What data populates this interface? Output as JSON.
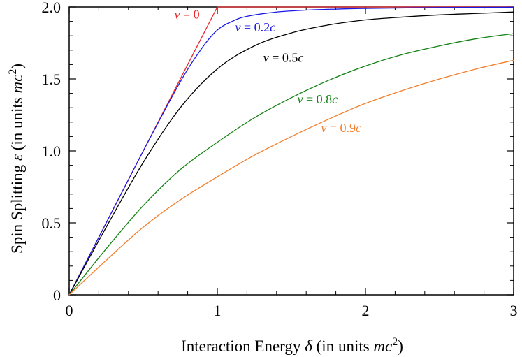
{
  "chart_data": {
    "type": "line",
    "title": "",
    "xlabel": {
      "text": "Interaction Energy",
      "symbol": "δ",
      "units_prefix": "(in units",
      "units_symbol": "mc",
      "units_power": "2",
      "units_suffix": ")"
    },
    "ylabel": {
      "text": "Spin Splitting",
      "symbol": "ε",
      "units_prefix": "(in units",
      "units_symbol": "mc",
      "units_power": "2",
      "units_suffix": ")"
    },
    "xlim": [
      0,
      3
    ],
    "ylim": [
      0,
      2
    ],
    "x_ticks": [
      0,
      1,
      2,
      3
    ],
    "x_tick_labels": [
      "0",
      "1",
      "2",
      "3"
    ],
    "y_ticks": [
      0,
      0.5,
      1.0,
      1.5,
      2.0
    ],
    "y_tick_labels": [
      "0",
      "0.5",
      "1.0",
      "1.5",
      "2.0"
    ],
    "x_minor_step": 0.2,
    "y_minor_step": 0.1,
    "grid": false,
    "series": [
      {
        "name": "v = 0",
        "label_var": "v",
        "label_eq": " = ",
        "label_num": "0",
        "label_unit": "",
        "color": "#e8262a",
        "x": [
          0,
          1,
          3
        ],
        "values": [
          0,
          2,
          2
        ]
      },
      {
        "name": "v = 0.2c",
        "label_var": "v",
        "label_eq": " = ",
        "label_num": "0.2",
        "label_unit": "c",
        "color": "#1a1ae6",
        "x": [
          0,
          0.25,
          0.5,
          0.75,
          0.9,
          1.0,
          1.1,
          1.2,
          1.4,
          1.6,
          1.8,
          2.0,
          2.5,
          3.0
        ],
        "values": [
          0,
          0.5,
          1.0,
          1.48,
          1.72,
          1.84,
          1.9,
          1.935,
          1.965,
          1.978,
          1.985,
          1.99,
          1.996,
          1.998
        ]
      },
      {
        "name": "v = 0.5c",
        "label_var": "v",
        "label_eq": " = ",
        "label_num": "0.5",
        "label_unit": "c",
        "color": "#000000",
        "x": [
          0,
          0.25,
          0.5,
          0.75,
          1.0,
          1.25,
          1.5,
          1.75,
          2.0,
          2.25,
          2.5,
          2.75,
          3.0
        ],
        "values": [
          0,
          0.47,
          0.92,
          1.3,
          1.57,
          1.73,
          1.82,
          1.875,
          1.91,
          1.93,
          1.945,
          1.955,
          1.965
        ]
      },
      {
        "name": "v = 0.8c",
        "label_var": "v",
        "label_eq": " = ",
        "label_num": "0.8",
        "label_unit": "c",
        "color": "#148214",
        "x": [
          0,
          0.25,
          0.5,
          0.75,
          1.0,
          1.25,
          1.5,
          1.75,
          2.0,
          2.25,
          2.5,
          2.75,
          3.0
        ],
        "values": [
          0,
          0.32,
          0.62,
          0.87,
          1.06,
          1.23,
          1.37,
          1.49,
          1.59,
          1.67,
          1.73,
          1.78,
          1.815
        ]
      },
      {
        "name": "v = 0.9c",
        "label_var": "v",
        "label_eq": " = ",
        "label_num": "0.9",
        "label_unit": "c",
        "color": "#f27f2d",
        "x": [
          0,
          0.25,
          0.5,
          0.75,
          1.0,
          1.25,
          1.5,
          1.75,
          2.0,
          2.25,
          2.5,
          2.75,
          3.0
        ],
        "values": [
          0,
          0.24,
          0.47,
          0.66,
          0.82,
          0.97,
          1.1,
          1.22,
          1.33,
          1.42,
          1.5,
          1.57,
          1.63
        ]
      }
    ],
    "annotations": [
      {
        "series_index": 0,
        "x": 0.71,
        "y": 1.92
      },
      {
        "series_index": 1,
        "x": 1.12,
        "y": 1.83
      },
      {
        "series_index": 2,
        "x": 1.31,
        "y": 1.62
      },
      {
        "series_index": 3,
        "x": 1.54,
        "y": 1.33
      },
      {
        "series_index": 4,
        "x": 1.7,
        "y": 1.13
      }
    ]
  }
}
